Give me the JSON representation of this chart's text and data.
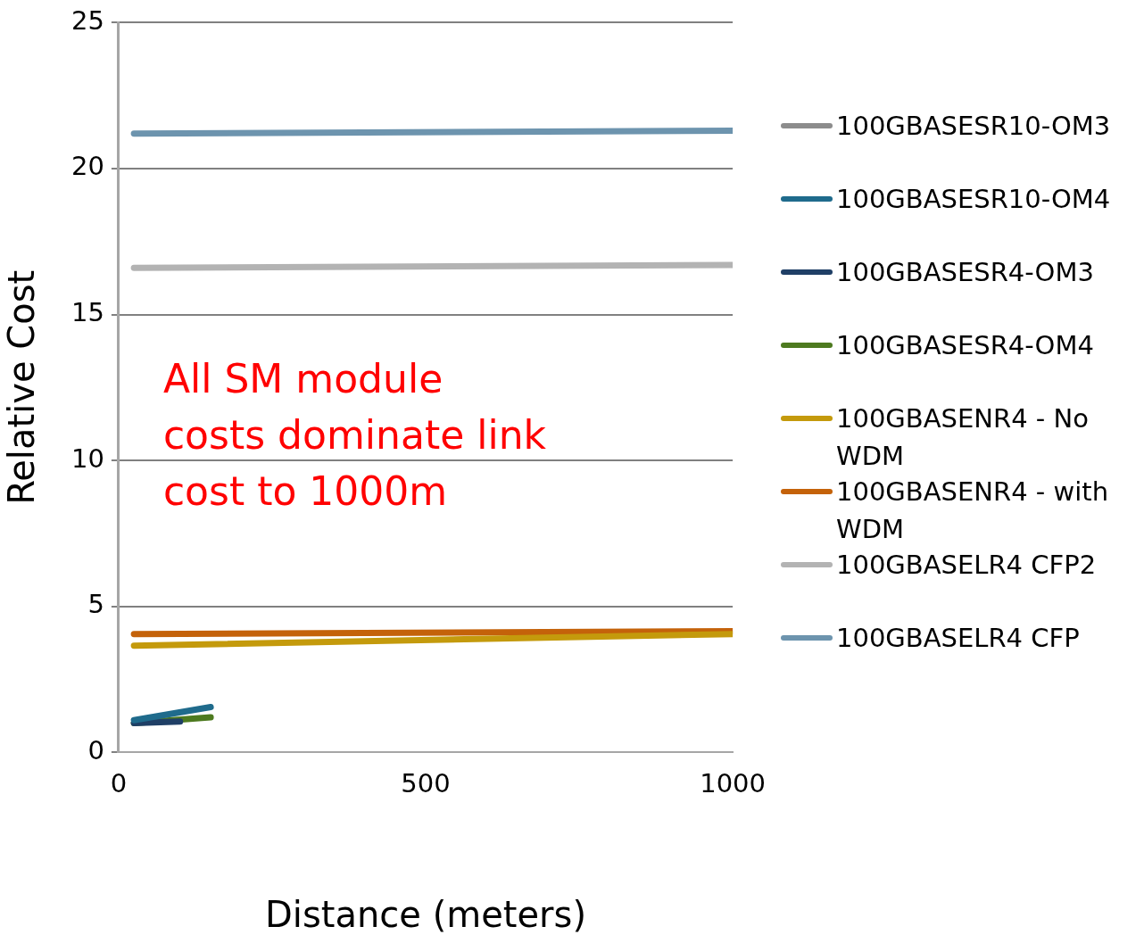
{
  "chart_data": {
    "type": "line",
    "xlabel": "Distance (meters)",
    "ylabel": "Relative Cost",
    "xlim": [
      0,
      1000
    ],
    "xticks": [
      0,
      500,
      1000
    ],
    "ylim": [
      0,
      25
    ],
    "yticks": [
      0,
      5,
      10,
      15,
      20,
      25
    ],
    "grid": "y",
    "legend": "right",
    "marker": "none",
    "line_style": "solid",
    "annotations": [
      "All SM module costs dominate link cost to 1000m"
    ],
    "series": [
      {
        "name": "100GBASESR10-OM3",
        "color": "#8c8c8c",
        "x": [
          null,
          null
        ],
        "values": [
          null,
          null
        ]
      },
      {
        "name": "100GBASESR10-OM4",
        "color": "#1f6b8c",
        "x": [
          25,
          150
        ],
        "values": [
          1.1,
          1.55
        ]
      },
      {
        "name": "100GBASESR4-OM3",
        "color": "#1f3f66",
        "x": [
          25,
          100
        ],
        "values": [
          1.0,
          1.05
        ]
      },
      {
        "name": "100GBASESR4-OM4",
        "color": "#4d7a1f",
        "x": [
          25,
          150
        ],
        "values": [
          1.0,
          1.2
        ]
      },
      {
        "name": "100GBASENR4 - No WDM",
        "color": "#c49a0c",
        "x": [
          25,
          1000
        ],
        "values": [
          3.65,
          4.05
        ]
      },
      {
        "name": "100GBASENR4 - with WDM",
        "color": "#c4620a",
        "x": [
          25,
          1000
        ],
        "values": [
          4.05,
          4.15
        ]
      },
      {
        "name": "100GBASELR4 CFP2",
        "color": "#b3b3b3",
        "x": [
          25,
          1000
        ],
        "values": [
          16.6,
          16.7
        ]
      },
      {
        "name": "100GBASELR4 CFP",
        "color": "#6d94ae",
        "x": [
          25,
          1000
        ],
        "values": [
          21.2,
          21.3
        ]
      }
    ]
  }
}
